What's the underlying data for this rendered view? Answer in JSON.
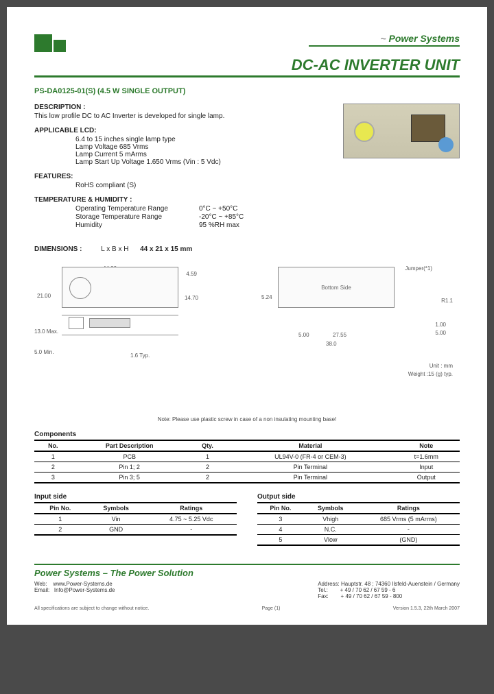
{
  "brand": "Power Systems",
  "title": "DC-AC INVERTER UNIT",
  "model": "PS-DA0125-01(S)",
  "subtitle": "(4.5 W SINGLE OUTPUT)",
  "description": {
    "label": "DESCRIPTION :",
    "text": "This low profile DC to AC Inverter is developed for single lamp."
  },
  "applicable": {
    "label": "APPLICABLE LCD:",
    "lines": [
      "6.4 to 15 inches single lamp type",
      "Lamp Voltage   685 Vrms",
      "Lamp Current   5 mArms",
      "Lamp Start Up Voltage 1.650 Vrms (Vin : 5 Vdc)"
    ]
  },
  "features": {
    "label": "FEATURES:",
    "text": "RoHS compliant (S)"
  },
  "temp": {
    "label": "TEMPERATURE & HUMIDITY :",
    "rows": [
      {
        "k": "Operating Temperature Range",
        "v": "0°C ~ +50°C"
      },
      {
        "k": "Storage Temperature Range",
        "v": "-20°C ~ +85°C"
      },
      {
        "k": "Humidity",
        "v": "95 %RH max"
      }
    ]
  },
  "dimensions": {
    "label": "DIMENSIONS :",
    "spec": "L x B x H",
    "value": "44 x 21 x 15 mm"
  },
  "diagram": {
    "w": "44.00",
    "h": "21.00",
    "h2": "14.70",
    "h3": "4.59",
    "side_h": "13.0 Max.",
    "side_b": "5.0 Min.",
    "typ": "1.6 Typ.",
    "bottom_label": "Bottom Side",
    "r1": "R1.1",
    "d1": "5.00",
    "d2": "27.55",
    "d3": "38.0",
    "d4": "5.24",
    "d5": "1.00",
    "d6": "5.00",
    "jumper": "Jumper(*1)",
    "unit": "Unit : mm",
    "weight": "Weight :15 (g) typ."
  },
  "note": "Note: Please use plastic screw in case of a non insulating mounting base!",
  "components": {
    "title": "Components",
    "headers": [
      "No.",
      "Part Description",
      "Qty.",
      "Material",
      "Note"
    ],
    "rows": [
      [
        "1",
        "PCB",
        "1",
        "UL94V-0 (FR-4 or CEM-3)",
        "t=1.6mm"
      ],
      [
        "2",
        "Pin 1; 2",
        "2",
        "Pin Terminal",
        "Input"
      ],
      [
        "3",
        "Pin 3; 5",
        "2",
        "Pin Terminal",
        "Output"
      ]
    ]
  },
  "input": {
    "title": "Input side",
    "headers": [
      "Pin No.",
      "Symbols",
      "Ratings"
    ],
    "rows": [
      [
        "1",
        "Vin",
        "4.75 ~ 5.25 Vdc"
      ],
      [
        "2",
        "GND",
        "-"
      ]
    ]
  },
  "output": {
    "title": "Output side",
    "headers": [
      "Pin No.",
      "Symbols",
      "Ratings"
    ],
    "rows": [
      [
        "3",
        "Vhigh",
        "685 Vrms (5 mArms)"
      ],
      [
        "4",
        "N.C.",
        "-"
      ],
      [
        "5",
        "Vlow",
        "(GND)"
      ]
    ]
  },
  "footer": {
    "tagline": "Power Systems – The Power Solution",
    "web_l": "Web:",
    "web_v": "www.Power-Systems.de",
    "email_l": "Email:",
    "email_v": "Info@Power-Systems.de",
    "addr_l": "Address:",
    "addr_v": "Hauptstr. 48 ; 74360 Ilsfeld-Auenstein / Germany",
    "tel_l": "Tel.:",
    "tel_v": "+ 49 / 70 62 / 67 59 - 6",
    "fax_l": "Fax:",
    "fax_v": "+ 49 / 70 62 / 67 59 - 800",
    "disclaimer": "All specifications are subject to change without notice.",
    "page": "Page (1)",
    "version": "Version 1.5.3, 22th March 2007"
  }
}
